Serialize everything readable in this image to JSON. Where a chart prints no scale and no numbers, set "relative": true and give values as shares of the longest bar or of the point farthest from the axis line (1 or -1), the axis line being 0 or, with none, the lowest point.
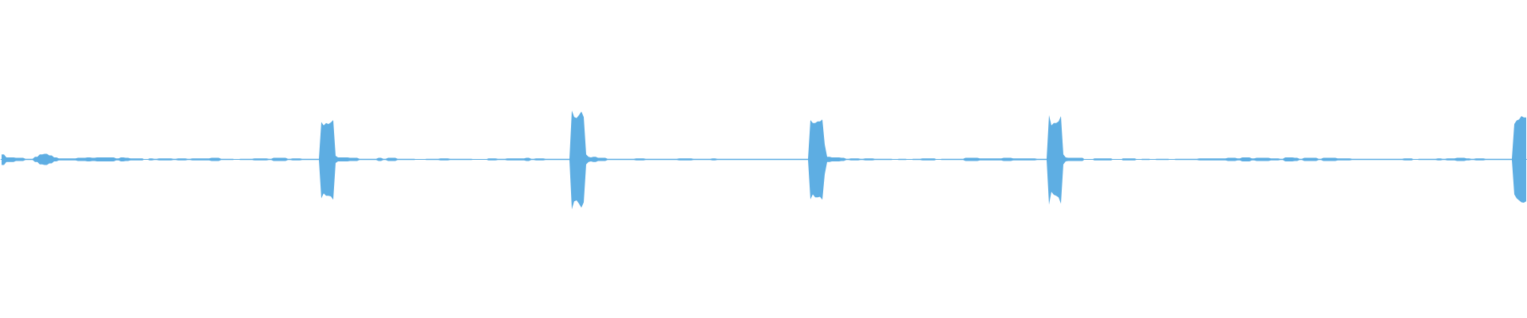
{
  "chart_data": {
    "type": "area",
    "relative": true,
    "tick_labels": false,
    "ref_lines": [
      {
        "axis": "y",
        "value": 0,
        "color": "#5dade2"
      }
    ],
    "categories": [
      null,
      null,
      null,
      null,
      null,
      null,
      null,
      null,
      null,
      null,
      null,
      null,
      null,
      null,
      null,
      null,
      null,
      null,
      null,
      null,
      null,
      null,
      null,
      null,
      null,
      null,
      null,
      null,
      null,
      null,
      null,
      null,
      null,
      null,
      null,
      null,
      null,
      null,
      null,
      null,
      null,
      null,
      null,
      null,
      null,
      null,
      null,
      null,
      null,
      null,
      null,
      null,
      null,
      null,
      null,
      null,
      null,
      null,
      null,
      null,
      null,
      null,
      null,
      null,
      null,
      null,
      null,
      null,
      null,
      null,
      null,
      null,
      null,
      null,
      null,
      null,
      null,
      null,
      null,
      null,
      null,
      null,
      null,
      null,
      null,
      null,
      null,
      null,
      null,
      null,
      null,
      null,
      null,
      null,
      null,
      null,
      null,
      null,
      null,
      null,
      null,
      null,
      null,
      null,
      null,
      null,
      null,
      null,
      null,
      null,
      null,
      null,
      null,
      null,
      null,
      null,
      null,
      null,
      null,
      null,
      null,
      null,
      null,
      null,
      null,
      null,
      null,
      null,
      null,
      null,
      null,
      null,
      null,
      null,
      null,
      null,
      null,
      null,
      null,
      null,
      null,
      null,
      null,
      null,
      null,
      null,
      null,
      null,
      null,
      null,
      null,
      null,
      null,
      null,
      null,
      null,
      null,
      null,
      null,
      null,
      null,
      null,
      null,
      null,
      null,
      null,
      null,
      null,
      null,
      null,
      null,
      null,
      null,
      null,
      null,
      null,
      null,
      null,
      null,
      null,
      null,
      null,
      null,
      null,
      null,
      null,
      null,
      null,
      null,
      null,
      null,
      null,
      null,
      null,
      null,
      null,
      null,
      null,
      null,
      null,
      null,
      null,
      null,
      null,
      null,
      null,
      null,
      null,
      null,
      null,
      null,
      null,
      null,
      null,
      null,
      null,
      null,
      null,
      null,
      null,
      null,
      null,
      null,
      null,
      null,
      null,
      null,
      null,
      null,
      null,
      null,
      null,
      null,
      null,
      null,
      null,
      null,
      null,
      null,
      null,
      null,
      null,
      null,
      null,
      null,
      null,
      null,
      null,
      null,
      null,
      null,
      null,
      null,
      null,
      null,
      null,
      null,
      null,
      null,
      null,
      null,
      null,
      null,
      null,
      null,
      null,
      null,
      null,
      null,
      null,
      null,
      null,
      null,
      null,
      null,
      null,
      null,
      null,
      null,
      null,
      null,
      null,
      null,
      null,
      null,
      null,
      null,
      null,
      null,
      null,
      null,
      null,
      null,
      null,
      null,
      null,
      null,
      null,
      null,
      null,
      null,
      null,
      null,
      null,
      null,
      null,
      null,
      null,
      null,
      null,
      null,
      null,
      null,
      null,
      null,
      null,
      null,
      null,
      null,
      null,
      null,
      null,
      null,
      null,
      null,
      null,
      null,
      null,
      null,
      null,
      null,
      null,
      null,
      null,
      null,
      null,
      null,
      null,
      null,
      null,
      null,
      null,
      null,
      null,
      null,
      null,
      null,
      null,
      null,
      null,
      null,
      null,
      null,
      null,
      null,
      null,
      null,
      null,
      null,
      null,
      null,
      null,
      null,
      null,
      null,
      null,
      null,
      null,
      null,
      null,
      null,
      null,
      null,
      null,
      null,
      null,
      null,
      null,
      null,
      null,
      null,
      null,
      null,
      null,
      null,
      null,
      null,
      null,
      null,
      null,
      null,
      null,
      null,
      null,
      null,
      null,
      null,
      null,
      null,
      null,
      null,
      null,
      null,
      null,
      null,
      null,
      null,
      null,
      null,
      null,
      null,
      null,
      null,
      null,
      null,
      null,
      null,
      null,
      null,
      null,
      null,
      null,
      null,
      null,
      null,
      null,
      null,
      null,
      null,
      null,
      null,
      null,
      null,
      null,
      null,
      null,
      null,
      null,
      null,
      null,
      null,
      null,
      null,
      null,
      null,
      null,
      null,
      null,
      null,
      null,
      null,
      null,
      null,
      null,
      null,
      null,
      null,
      null,
      null,
      null,
      null,
      null,
      null,
      null,
      null,
      null,
      null,
      null,
      null,
      null,
      null,
      null,
      null,
      null,
      null,
      null,
      null,
      null,
      null,
      null,
      null,
      null,
      null,
      null,
      null,
      null,
      null,
      null,
      null,
      null,
      null,
      null,
      null,
      null,
      null,
      null,
      null,
      null,
      null,
      null,
      null,
      null,
      null,
      null,
      null,
      null,
      null,
      null,
      null,
      null,
      null,
      null,
      null,
      null,
      null,
      null,
      null,
      null,
      null,
      null,
      null,
      null,
      null,
      null,
      null,
      null,
      null,
      null,
      null,
      null,
      null,
      null,
      null,
      null,
      null,
      null,
      null,
      null,
      null,
      null,
      null,
      null,
      null,
      null,
      null,
      null,
      null,
      null,
      null,
      null,
      null,
      null,
      null,
      null,
      null,
      null,
      null,
      null,
      null,
      null,
      null,
      null,
      null,
      null,
      null,
      null,
      null,
      null,
      null,
      null,
      null,
      null,
      null,
      null,
      null,
      null,
      null,
      null,
      null,
      null,
      null,
      null,
      null,
      null,
      null,
      null,
      null,
      null,
      null,
      null,
      null,
      null,
      null,
      null,
      null,
      null,
      null,
      null,
      null,
      null,
      null,
      null,
      null,
      null,
      null,
      null,
      null,
      null,
      null,
      null,
      null,
      null,
      null,
      null,
      null,
      null,
      null,
      null,
      null,
      null,
      null,
      null,
      null,
      null,
      null,
      null,
      null,
      null,
      null,
      null,
      null,
      null,
      null,
      null,
      null,
      null,
      null,
      null,
      null,
      null
    ],
    "series": [
      {
        "color": "#5dade2",
        "values": [
          0.1,
          0.1,
          0.04,
          0.04,
          0.04,
          0.04,
          0.03,
          0.03,
          0.03,
          0.03,
          0.01,
          0.01,
          0.01,
          0.01,
          0.05,
          0.05,
          0.1,
          0.1,
          0.11,
          0.11,
          0.08,
          0.08,
          0.04,
          0.04,
          0.02,
          0.02,
          0.02,
          0.02,
          0.02,
          0.02,
          0.02,
          0.02,
          0.03,
          0.03,
          0.03,
          0.03,
          0.04,
          0.04,
          0.03,
          0.03,
          0.04,
          0.04,
          0.04,
          0.04,
          0.04,
          0.04,
          0.04,
          0.04,
          0.02,
          0.02,
          0.04,
          0.04,
          0.03,
          0.03,
          0.02,
          0.02,
          0.02,
          0.02,
          0.02,
          0.02,
          0,
          0,
          0.02,
          0.02,
          0.01,
          0.01,
          0.02,
          0.02,
          0.02,
          0.02,
          0.02,
          0.02,
          0.01,
          0.01,
          0.02,
          0.02,
          0.02,
          0.02,
          0.01,
          0.01,
          0.02,
          0.02,
          0.02,
          0.02,
          0.02,
          0.02,
          0.02,
          0.02,
          0.03,
          0.03,
          0.03,
          0.03,
          0.01,
          0.01,
          0.01,
          0.01,
          0.01,
          0.01,
          0,
          0,
          0.01,
          0.01,
          0.01,
          0.01,
          0.01,
          0.01,
          0.02,
          0.02,
          0.02,
          0.02,
          0.02,
          0.02,
          0.01,
          0.01,
          0.03,
          0.03,
          0.03,
          0.03,
          0.03,
          0.03,
          0.01,
          0.01,
          0.02,
          0.02,
          0.02,
          0.02,
          0.01,
          0.01,
          0.01,
          0.01,
          0.01,
          0.01,
          0.01,
          0.01,
          0.75,
          0.68,
          0.73,
          0.71,
          0.74,
          0.79,
          0.07,
          0.04,
          0.04,
          0.04,
          0.04,
          0.04,
          0.03,
          0.03,
          0.03,
          0.03,
          0.01,
          0.01,
          0.01,
          0.01,
          0.01,
          0.01,
          0.01,
          0.01,
          0.03,
          0.03,
          0.01,
          0.01,
          0.03,
          0.03,
          0.03,
          0.03,
          0.01,
          0.01,
          0.01,
          0.01,
          0.01,
          0.01,
          0.01,
          0.01,
          0,
          0,
          0,
          0,
          0.01,
          0.01,
          0.01,
          0.01,
          0.01,
          0.01,
          0.02,
          0.02,
          0.02,
          0.02,
          0.01,
          0.01,
          0.01,
          0.01,
          0.01,
          0.01,
          0.01,
          0.01,
          0.01,
          0.01,
          0,
          0,
          0,
          0,
          0,
          0,
          0.02,
          0.02,
          0.02,
          0.02,
          0.01,
          0.01,
          0.01,
          0.01,
          0.02,
          0.02,
          0.02,
          0.02,
          0.02,
          0.02,
          0.02,
          0.02,
          0.03,
          0.03,
          0.01,
          0.01,
          0.02,
          0.02,
          0.02,
          0.02,
          0.01,
          0.01,
          0.01,
          0.01,
          0.01,
          0.01,
          0.01,
          0.01,
          0.01,
          0.01,
          0.01,
          0.98,
          0.85,
          0.83,
          0.89,
          0.96,
          0.85,
          0.1,
          0.05,
          0.04,
          0.05,
          0.05,
          0.03,
          0.03,
          0.03,
          0.03,
          0.01,
          0.01,
          0.01,
          0.01,
          0.01,
          0.01,
          0.01,
          0.01,
          0.01,
          0.01,
          0.01,
          0.01,
          0.02,
          0.02,
          0.02,
          0.02,
          0.01,
          0.01,
          0.01,
          0.01,
          0.01,
          0.01,
          0.01,
          0.01,
          0.01,
          0.01,
          0.01,
          0.01,
          0.01,
          0.01,
          0.02,
          0.02,
          0.02,
          0.02,
          0.02,
          0.02,
          0.01,
          0.01,
          0.01,
          0.01,
          0.01,
          0.01,
          0.01,
          0.01,
          0.02,
          0.02,
          0.01,
          0.01,
          0.01,
          0.01,
          0.01,
          0.01,
          0.01,
          0.01,
          0.01,
          0.01,
          0.01,
          0.01,
          0.01,
          0.01,
          0.01,
          0.01,
          0.01,
          0.01,
          0.01,
          0.01,
          0.01,
          0.01,
          0.01,
          0.01,
          0.01,
          0.01,
          0.01,
          0.01,
          0.01,
          0.01,
          0.01,
          0.01,
          0.01,
          0.01,
          0.01,
          0.01,
          0.01,
          0.01,
          0.01,
          0.79,
          0.73,
          0.73,
          0.76,
          0.76,
          0.8,
          0.3,
          0.05,
          0.05,
          0.04,
          0.04,
          0.04,
          0.04,
          0.03,
          0.03,
          0.01,
          0.01,
          0.02,
          0.02,
          0.02,
          0.02,
          0.01,
          0.01,
          0.02,
          0.02,
          0.02,
          0.02,
          0.01,
          0.01,
          0.01,
          0.01,
          0.01,
          0.01,
          0.01,
          0.01,
          0,
          0,
          0.01,
          0.01,
          0.01,
          0.01,
          0,
          0,
          0.01,
          0.01,
          0.01,
          0.01,
          0.02,
          0.02,
          0.02,
          0.02,
          0.02,
          0.02,
          0,
          0,
          0.01,
          0.01,
          0.01,
          0.01,
          0.01,
          0.01,
          0.01,
          0.01,
          0.01,
          0.01,
          0.03,
          0.03,
          0.03,
          0.03,
          0.03,
          0.03,
          0.02,
          0.02,
          0.02,
          0.02,
          0.02,
          0.02,
          0.02,
          0.02,
          0.02,
          0.02,
          0.03,
          0.03,
          0.03,
          0.03,
          0.02,
          0.02,
          0.02,
          0.02,
          0.02,
          0.02,
          0.02,
          0.02,
          0.02,
          0.02,
          0.01,
          0.01,
          0.01,
          0.01,
          0.01,
          0.89,
          0.68,
          0.73,
          0.73,
          0.76,
          0.87,
          0.1,
          0.04,
          0.03,
          0.03,
          0.03,
          0.03,
          0.03,
          0.03,
          0.03,
          0,
          0,
          0,
          0,
          0.02,
          0.02,
          0.02,
          0.02,
          0.02,
          0.02,
          0.02,
          0.02,
          0,
          0,
          0,
          0,
          0.02,
          0.02,
          0.02,
          0.02,
          0.02,
          0.02,
          0,
          0,
          0.01,
          0.01,
          0.01,
          0.01,
          0,
          0,
          0.01,
          0.01,
          0.01,
          0.01,
          0.01,
          0.01,
          0,
          0,
          0.01,
          0.01,
          0.01,
          0.01,
          0.01,
          0.01,
          0.01,
          0.01,
          0.01,
          0.01,
          0.02,
          0.02,
          0.02,
          0.02,
          0.02,
          0.02,
          0.02,
          0.02,
          0.02,
          0.02,
          0.02,
          0.02,
          0.03,
          0.03,
          0.03,
          0.03,
          0.02,
          0.02,
          0.04,
          0.04,
          0.04,
          0.04,
          0.02,
          0.02,
          0.03,
          0.03,
          0.03,
          0.03,
          0.03,
          0.03,
          0.02,
          0.02,
          0.02,
          0.02,
          0.01,
          0.01,
          0.04,
          0.04,
          0.04,
          0.04,
          0.03,
          0.03,
          0.01,
          0.01,
          0.03,
          0.03,
          0.03,
          0.03,
          0.03,
          0.03,
          0.01,
          0.01,
          0.03,
          0.03,
          0.03,
          0.03,
          0.03,
          0.03,
          0.02,
          0.02,
          0.02,
          0.02,
          0.02,
          0.02,
          0.01,
          0.01,
          0.01,
          0.01,
          0.01,
          0.01,
          0.01,
          0.01,
          0.01,
          0.01,
          0.01,
          0.01,
          0.01,
          0.01,
          0.01,
          0.01,
          0.01,
          0.01,
          0.01,
          0.01,
          0.01,
          0.01,
          0.02,
          0.02,
          0.02,
          0.02,
          0,
          0,
          0.01,
          0.01,
          0.01,
          0.01,
          0.01,
          0.01,
          0.01,
          0.01,
          0.02,
          0.02,
          0.01,
          0.01,
          0.02,
          0.02,
          0.02,
          0.02,
          0.03,
          0.03,
          0.03,
          0.03,
          0.02,
          0.02,
          0.01,
          0.01,
          0.02,
          0.02,
          0.02,
          0.02,
          0.01,
          0.01,
          0.01,
          0.01,
          0.01,
          0.01,
          0.01,
          0.01,
          0.01,
          0.01,
          0.01,
          0.01,
          0.71,
          0.78,
          0.8,
          0.87,
          0.84,
          0.84
        ]
      },
      {
        "color": "#5eaee3",
        "values": [
          -0.11,
          -0.11,
          -0.05,
          -0.05,
          -0.05,
          -0.05,
          -0.03,
          -0.03,
          -0.03,
          -0.03,
          -0.01,
          -0.01,
          -0.01,
          -0.01,
          -0.05,
          -0.05,
          -0.1,
          -0.1,
          -0.11,
          -0.11,
          -0.08,
          -0.08,
          -0.04,
          -0.04,
          -0.02,
          -0.02,
          -0.02,
          -0.02,
          -0.02,
          -0.02,
          -0.02,
          -0.02,
          -0.03,
          -0.03,
          -0.03,
          -0.03,
          -0.04,
          -0.04,
          -0.03,
          -0.03,
          -0.04,
          -0.04,
          -0.04,
          -0.04,
          -0.04,
          -0.04,
          -0.04,
          -0.04,
          -0.02,
          -0.02,
          -0.04,
          -0.04,
          -0.03,
          -0.03,
          -0.02,
          -0.02,
          -0.02,
          -0.02,
          -0.02,
          -0.02,
          0,
          0,
          -0.02,
          -0.02,
          -0.01,
          -0.01,
          -0.02,
          -0.02,
          -0.02,
          -0.02,
          -0.02,
          -0.02,
          -0.01,
          -0.01,
          -0.02,
          -0.02,
          -0.02,
          -0.02,
          -0.01,
          -0.01,
          -0.02,
          -0.02,
          -0.02,
          -0.02,
          -0.02,
          -0.02,
          -0.02,
          -0.02,
          -0.03,
          -0.03,
          -0.03,
          -0.03,
          -0.01,
          -0.01,
          -0.01,
          -0.01,
          -0.01,
          -0.01,
          0,
          0,
          -0.01,
          -0.01,
          -0.01,
          -0.01,
          -0.01,
          -0.01,
          -0.02,
          -0.02,
          -0.02,
          -0.02,
          -0.02,
          -0.02,
          -0.01,
          -0.01,
          -0.03,
          -0.03,
          -0.03,
          -0.03,
          -0.03,
          -0.03,
          -0.01,
          -0.01,
          -0.02,
          -0.02,
          -0.02,
          -0.02,
          -0.01,
          -0.01,
          -0.01,
          -0.01,
          -0.01,
          -0.01,
          -0.01,
          -0.01,
          -0.78,
          -0.68,
          -0.73,
          -0.73,
          -0.74,
          -0.81,
          -0.07,
          -0.04,
          -0.04,
          -0.04,
          -0.04,
          -0.04,
          -0.03,
          -0.03,
          -0.03,
          -0.03,
          -0.01,
          -0.01,
          -0.01,
          -0.01,
          -0.01,
          -0.01,
          -0.01,
          -0.01,
          -0.03,
          -0.03,
          -0.01,
          -0.01,
          -0.03,
          -0.03,
          -0.03,
          -0.03,
          -0.01,
          -0.01,
          -0.01,
          -0.01,
          -0.01,
          -0.01,
          -0.01,
          -0.01,
          0,
          0,
          0,
          0,
          -0.01,
          -0.01,
          -0.01,
          -0.01,
          -0.01,
          -0.01,
          -0.02,
          -0.02,
          -0.02,
          -0.02,
          -0.01,
          -0.01,
          -0.01,
          -0.01,
          -0.01,
          -0.01,
          -0.01,
          -0.01,
          -0.01,
          -0.01,
          0,
          0,
          0,
          0,
          0,
          0,
          -0.02,
          -0.02,
          -0.02,
          -0.02,
          -0.01,
          -0.01,
          -0.01,
          -0.01,
          -0.02,
          -0.02,
          -0.02,
          -0.02,
          -0.02,
          -0.02,
          -0.02,
          -0.02,
          -0.03,
          -0.03,
          -0.01,
          -0.01,
          -0.02,
          -0.02,
          -0.02,
          -0.02,
          -0.01,
          -0.01,
          -0.01,
          -0.01,
          -0.01,
          -0.01,
          -0.01,
          -0.01,
          -0.01,
          -0.01,
          -0.01,
          -1,
          -0.84,
          -0.82,
          -0.89,
          -0.97,
          -0.86,
          -0.1,
          -0.05,
          -0.04,
          -0.05,
          -0.05,
          -0.03,
          -0.03,
          -0.03,
          -0.03,
          -0.01,
          -0.01,
          -0.01,
          -0.01,
          -0.01,
          -0.01,
          -0.01,
          -0.01,
          -0.01,
          -0.01,
          -0.01,
          -0.01,
          -0.02,
          -0.02,
          -0.02,
          -0.02,
          -0.01,
          -0.01,
          -0.01,
          -0.01,
          -0.01,
          -0.01,
          -0.01,
          -0.01,
          -0.01,
          -0.01,
          -0.01,
          -0.01,
          -0.01,
          -0.01,
          -0.02,
          -0.02,
          -0.02,
          -0.02,
          -0.02,
          -0.02,
          -0.01,
          -0.01,
          -0.01,
          -0.01,
          -0.01,
          -0.01,
          -0.01,
          -0.01,
          -0.02,
          -0.02,
          -0.01,
          -0.01,
          -0.01,
          -0.01,
          -0.01,
          -0.01,
          -0.01,
          -0.01,
          -0.01,
          -0.01,
          -0.01,
          -0.01,
          -0.01,
          -0.01,
          -0.01,
          -0.01,
          -0.01,
          -0.01,
          -0.01,
          -0.01,
          -0.01,
          -0.01,
          -0.01,
          -0.01,
          -0.01,
          -0.01,
          -0.01,
          -0.01,
          -0.01,
          -0.01,
          -0.01,
          -0.01,
          -0.01,
          -0.01,
          -0.01,
          -0.01,
          -0.01,
          -0.01,
          -0.01,
          -0.8,
          -0.7,
          -0.76,
          -0.76,
          -0.75,
          -0.81,
          -0.3,
          -0.05,
          -0.05,
          -0.04,
          -0.04,
          -0.04,
          -0.04,
          -0.03,
          -0.03,
          -0.01,
          -0.01,
          -0.02,
          -0.02,
          -0.02,
          -0.02,
          -0.01,
          -0.01,
          -0.02,
          -0.02,
          -0.02,
          -0.02,
          -0.01,
          -0.01,
          -0.01,
          -0.01,
          -0.01,
          -0.01,
          -0.01,
          -0.01,
          0,
          0,
          -0.01,
          -0.01,
          -0.01,
          -0.01,
          0,
          0,
          -0.01,
          -0.01,
          -0.01,
          -0.01,
          -0.02,
          -0.02,
          -0.02,
          -0.02,
          -0.02,
          -0.02,
          0,
          0,
          -0.01,
          -0.01,
          -0.01,
          -0.01,
          -0.01,
          -0.01,
          -0.01,
          -0.01,
          -0.01,
          -0.01,
          -0.03,
          -0.03,
          -0.03,
          -0.03,
          -0.03,
          -0.03,
          -0.02,
          -0.02,
          -0.02,
          -0.02,
          -0.02,
          -0.02,
          -0.02,
          -0.02,
          -0.02,
          -0.02,
          -0.03,
          -0.03,
          -0.03,
          -0.03,
          -0.02,
          -0.02,
          -0.02,
          -0.02,
          -0.02,
          -0.02,
          -0.02,
          -0.02,
          -0.02,
          -0.02,
          -0.01,
          -0.01,
          -0.01,
          -0.01,
          -0.01,
          -0.91,
          -0.65,
          -0.71,
          -0.73,
          -0.76,
          -0.89,
          -0.1,
          -0.04,
          -0.03,
          -0.03,
          -0.03,
          -0.03,
          -0.03,
          -0.03,
          -0.03,
          0,
          0,
          0,
          0,
          -0.02,
          -0.02,
          -0.02,
          -0.02,
          -0.02,
          -0.02,
          -0.02,
          -0.02,
          0,
          0,
          0,
          0,
          -0.02,
          -0.02,
          -0.02,
          -0.02,
          -0.02,
          -0.02,
          0,
          0,
          -0.01,
          -0.01,
          -0.01,
          -0.01,
          0,
          0,
          -0.01,
          -0.01,
          -0.01,
          -0.01,
          -0.01,
          -0.01,
          0,
          0,
          -0.01,
          -0.01,
          -0.01,
          -0.01,
          -0.01,
          -0.01,
          -0.01,
          -0.01,
          -0.01,
          -0.01,
          -0.02,
          -0.02,
          -0.02,
          -0.02,
          -0.02,
          -0.02,
          -0.02,
          -0.02,
          -0.02,
          -0.02,
          -0.02,
          -0.02,
          -0.03,
          -0.03,
          -0.03,
          -0.03,
          -0.02,
          -0.02,
          -0.04,
          -0.04,
          -0.04,
          -0.04,
          -0.02,
          -0.02,
          -0.03,
          -0.03,
          -0.03,
          -0.03,
          -0.03,
          -0.03,
          -0.02,
          -0.02,
          -0.02,
          -0.02,
          -0.01,
          -0.01,
          -0.04,
          -0.04,
          -0.04,
          -0.04,
          -0.03,
          -0.03,
          -0.01,
          -0.01,
          -0.03,
          -0.03,
          -0.03,
          -0.03,
          -0.03,
          -0.03,
          -0.01,
          -0.01,
          -0.03,
          -0.03,
          -0.03,
          -0.03,
          -0.03,
          -0.03,
          -0.02,
          -0.02,
          -0.02,
          -0.02,
          -0.02,
          -0.02,
          -0.01,
          -0.01,
          -0.01,
          -0.01,
          -0.01,
          -0.01,
          -0.01,
          -0.01,
          -0.01,
          -0.01,
          -0.01,
          -0.01,
          -0.01,
          -0.01,
          -0.01,
          -0.01,
          -0.01,
          -0.01,
          -0.01,
          -0.01,
          -0.01,
          -0.01,
          -0.02,
          -0.02,
          -0.02,
          -0.02,
          0,
          0,
          -0.01,
          -0.01,
          -0.01,
          -0.01,
          -0.01,
          -0.01,
          -0.01,
          -0.01,
          -0.02,
          -0.02,
          -0.01,
          -0.01,
          -0.02,
          -0.02,
          -0.02,
          -0.02,
          -0.03,
          -0.03,
          -0.03,
          -0.03,
          -0.02,
          -0.02,
          -0.01,
          -0.01,
          -0.02,
          -0.02,
          -0.02,
          -0.02,
          -0.01,
          -0.01,
          -0.01,
          -0.01,
          -0.01,
          -0.01,
          -0.01,
          -0.01,
          -0.01,
          -0.01,
          -0.01,
          -0.01,
          -0.7,
          -0.78,
          -0.82,
          -0.86,
          -0.87,
          -0.84
        ]
      }
    ]
  }
}
